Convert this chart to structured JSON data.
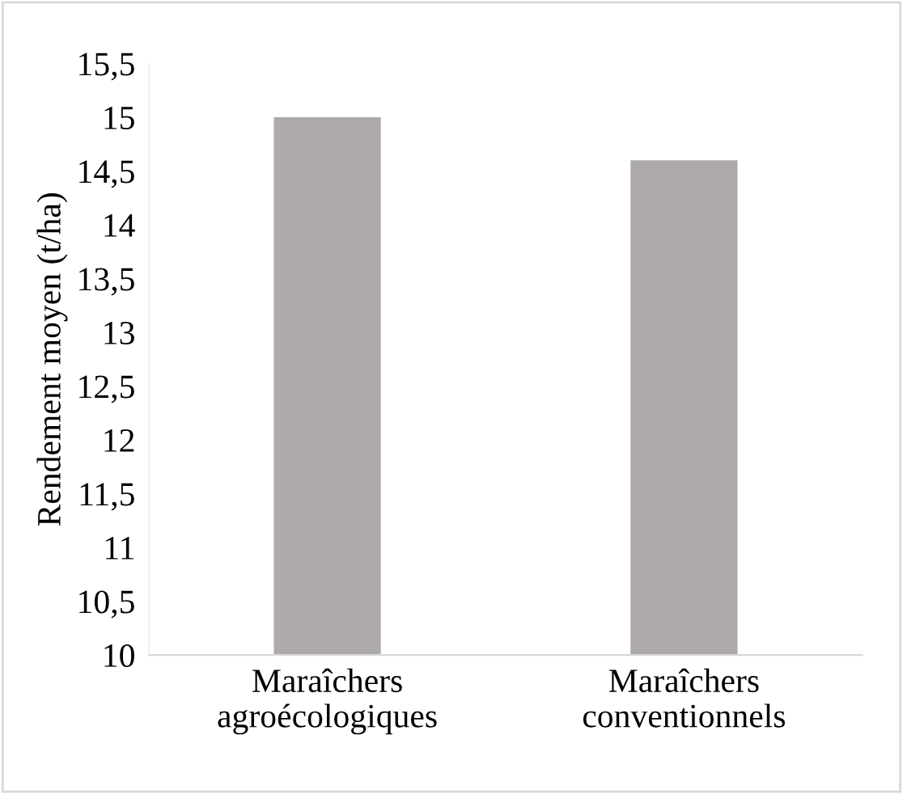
{
  "chart_data": {
    "type": "bar",
    "ylabel": "Rendement moyen (t/ha)",
    "categories": [
      "Maraîchers\nagroécologiques",
      "Maraîchers\nconventionnels"
    ],
    "values": [
      15.0,
      14.6
    ],
    "color": "#aeaaaa",
    "ylim": [
      10,
      15.5
    ],
    "yticks": [
      10,
      {
        "value": 10.5,
        "label": "10,5"
      },
      11,
      {
        "value": 11.5,
        "label": "11,5"
      },
      12,
      {
        "value": 12.5,
        "label": "12,5"
      },
      13,
      {
        "value": 13.5,
        "label": "13,5"
      },
      14,
      {
        "value": 14.5,
        "label": "14,5"
      },
      15,
      {
        "value": 15.5,
        "label": "15,5"
      }
    ],
    "grid": false,
    "legend": false
  }
}
